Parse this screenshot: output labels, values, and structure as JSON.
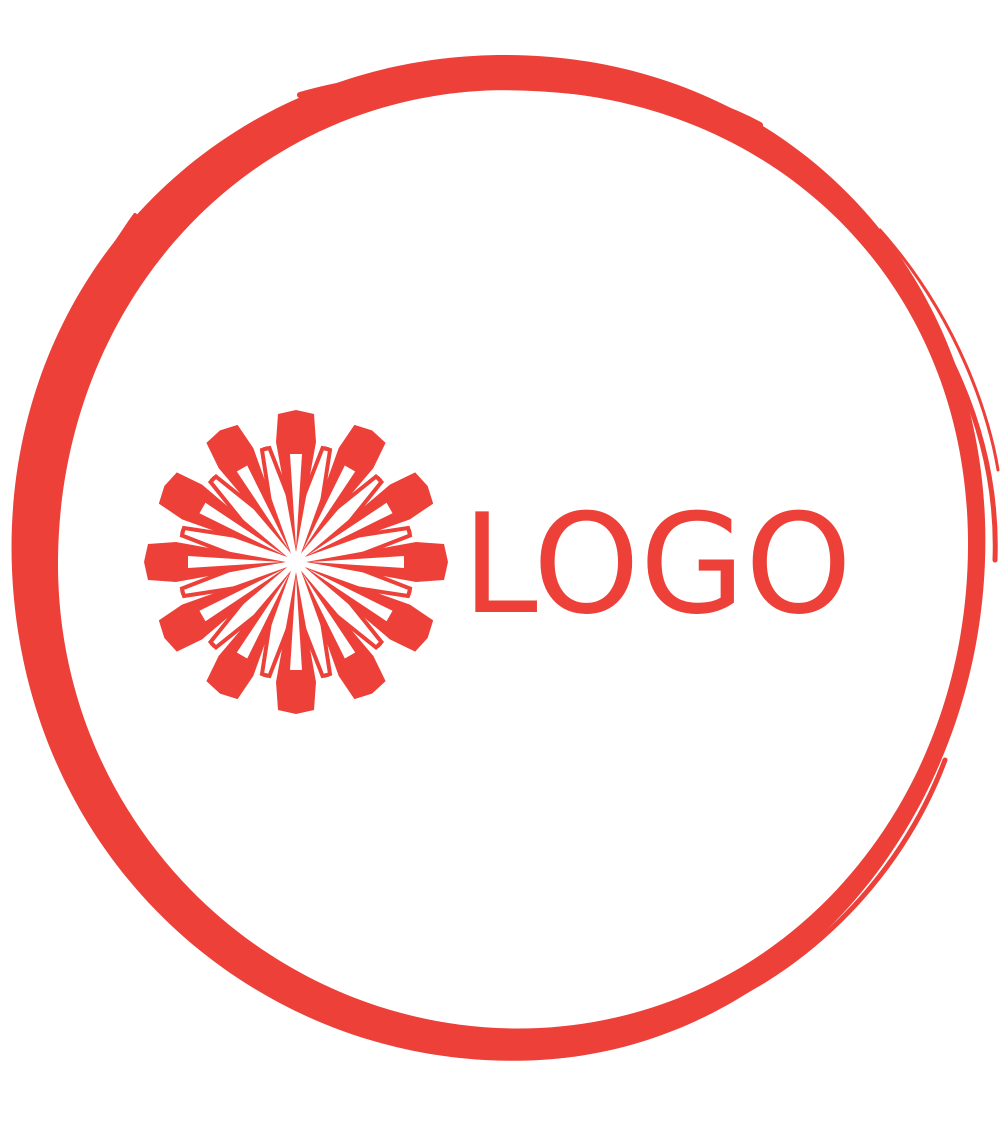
{
  "logo": {
    "wordmark_text": "LOGO",
    "brand_color": "#ec4039",
    "background_color": "#ffffff",
    "emblem_icon": "radial-starburst-icon",
    "frame_icon": "brush-stroke-circle-icon"
  }
}
